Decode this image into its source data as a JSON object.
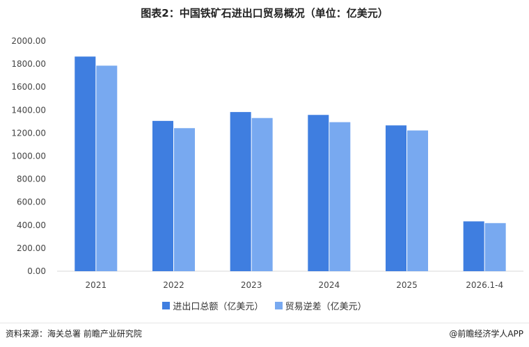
{
  "title": "图表2：中国铁矿石进出口贸易概况（单位：亿美元）",
  "chart_data": {
    "type": "bar",
    "categories": [
      "2021",
      "2022",
      "2023",
      "2024",
      "2025",
      "2026.1-4"
    ],
    "series": [
      {
        "name": "进出口总额（亿美元）",
        "values": [
          1865,
          1306,
          1383,
          1358,
          1267,
          433
        ],
        "color": "#3f7ee0"
      },
      {
        "name": "贸易逆差（亿美元）",
        "values": [
          1786,
          1243,
          1331,
          1295,
          1223,
          418
        ],
        "color": "#78a9f0"
      }
    ],
    "ylim": [
      0,
      2000
    ],
    "yticks": [
      "0.00",
      "200.00",
      "400.00",
      "600.00",
      "800.00",
      "1000.00",
      "1200.00",
      "1400.00",
      "1600.00",
      "1800.00",
      "2000.00"
    ],
    "grid": false,
    "legend": "bottom"
  },
  "footer": {
    "source": "资料来源：海关总署  前瞻产业研究院",
    "brand": "@前瞻经济学人APP"
  }
}
